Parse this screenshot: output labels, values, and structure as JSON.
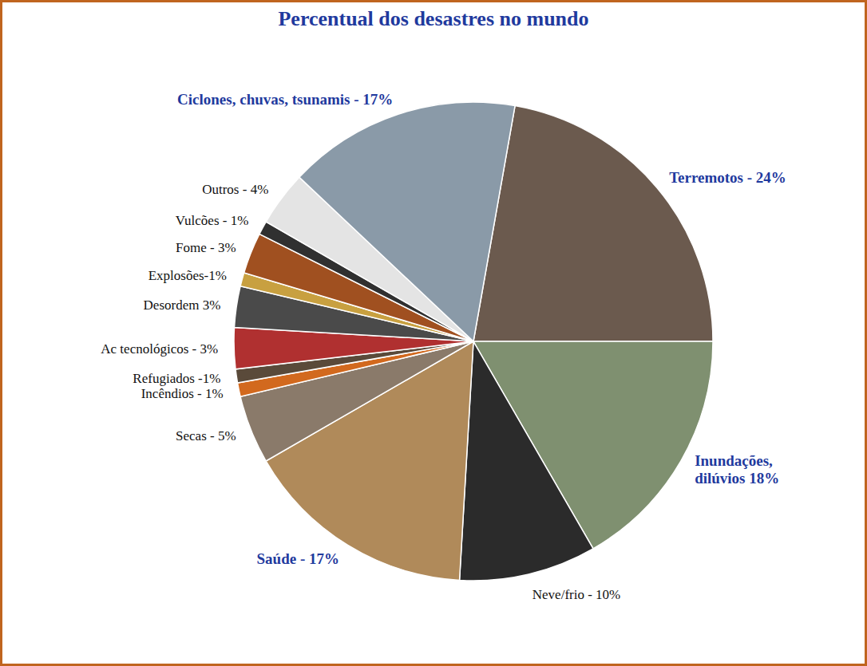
{
  "chart_data": {
    "type": "pie",
    "title": "Percentual dos desastres no mundo",
    "categories": [
      "Terremotos - 24%",
      "Inundações, dilúvios 18%",
      "Neve/frio - 10%",
      "Saúde - 17%",
      "Secas - 5%",
      "Incêndios - 1%",
      "Refugiados -1%",
      "Ac tecnológicos - 3%",
      "Desordem 3%",
      "Explosões-1%",
      "Fome - 3%",
      "Vulcões - 1%",
      "Outros - 4%",
      "Ciclones, chuvas, tsunamis - 17%"
    ],
    "values": [
      24,
      18,
      10,
      17,
      5,
      1,
      1,
      3,
      3,
      1,
      3,
      1,
      4,
      17
    ],
    "colors": [
      "#6b5a4e",
      "#7f9070",
      "#2b2b2b",
      "#b08a5a",
      "#8a7a6a",
      "#d2691e",
      "#5a4a3a",
      "#b03030",
      "#4a4a4a",
      "#c8a040",
      "#a05020",
      "#303030",
      "#e4e4e4",
      "#8a9aa8"
    ]
  }
}
